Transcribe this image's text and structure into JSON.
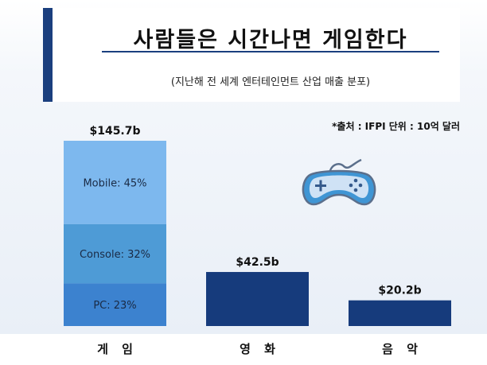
{
  "header": {
    "title": "사람들은 시간나면 게임한다",
    "subtitle": "(지난해 전 세계 엔터테인먼트 산업 매출 분포)",
    "source": "*출처 : IFPI 단위 : 10억 달러"
  },
  "colors": {
    "accent": "#1b3f7e",
    "mobile": "#7db8ee",
    "console": "#4e9bd6",
    "pc": "#3c82cf",
    "bar": "#163b7c"
  },
  "icon": "game-controller-icon",
  "chart_data": {
    "type": "bar",
    "categories": [
      "게 임",
      "영 화",
      "음 악"
    ],
    "values": [
      145.7,
      42.5,
      20.2
    ],
    "value_labels": [
      "$145.7b",
      "$42.5b",
      "$20.2b"
    ],
    "breakdown": {
      "category": "게 임",
      "segments": [
        {
          "name": "Mobile",
          "percent": 45,
          "label": "Mobile: 45%"
        },
        {
          "name": "Console",
          "percent": 32,
          "label": "Console: 32%"
        },
        {
          "name": "PC",
          "percent": 23,
          "label": "PC: 23%"
        }
      ]
    },
    "title": "사람들은 시간나면 게임한다",
    "subtitle": "(지난해 전 세계 엔터테인먼트 산업 매출 분포)",
    "ylim": [
      0,
      145.7
    ],
    "grid": false,
    "legend": "none"
  }
}
